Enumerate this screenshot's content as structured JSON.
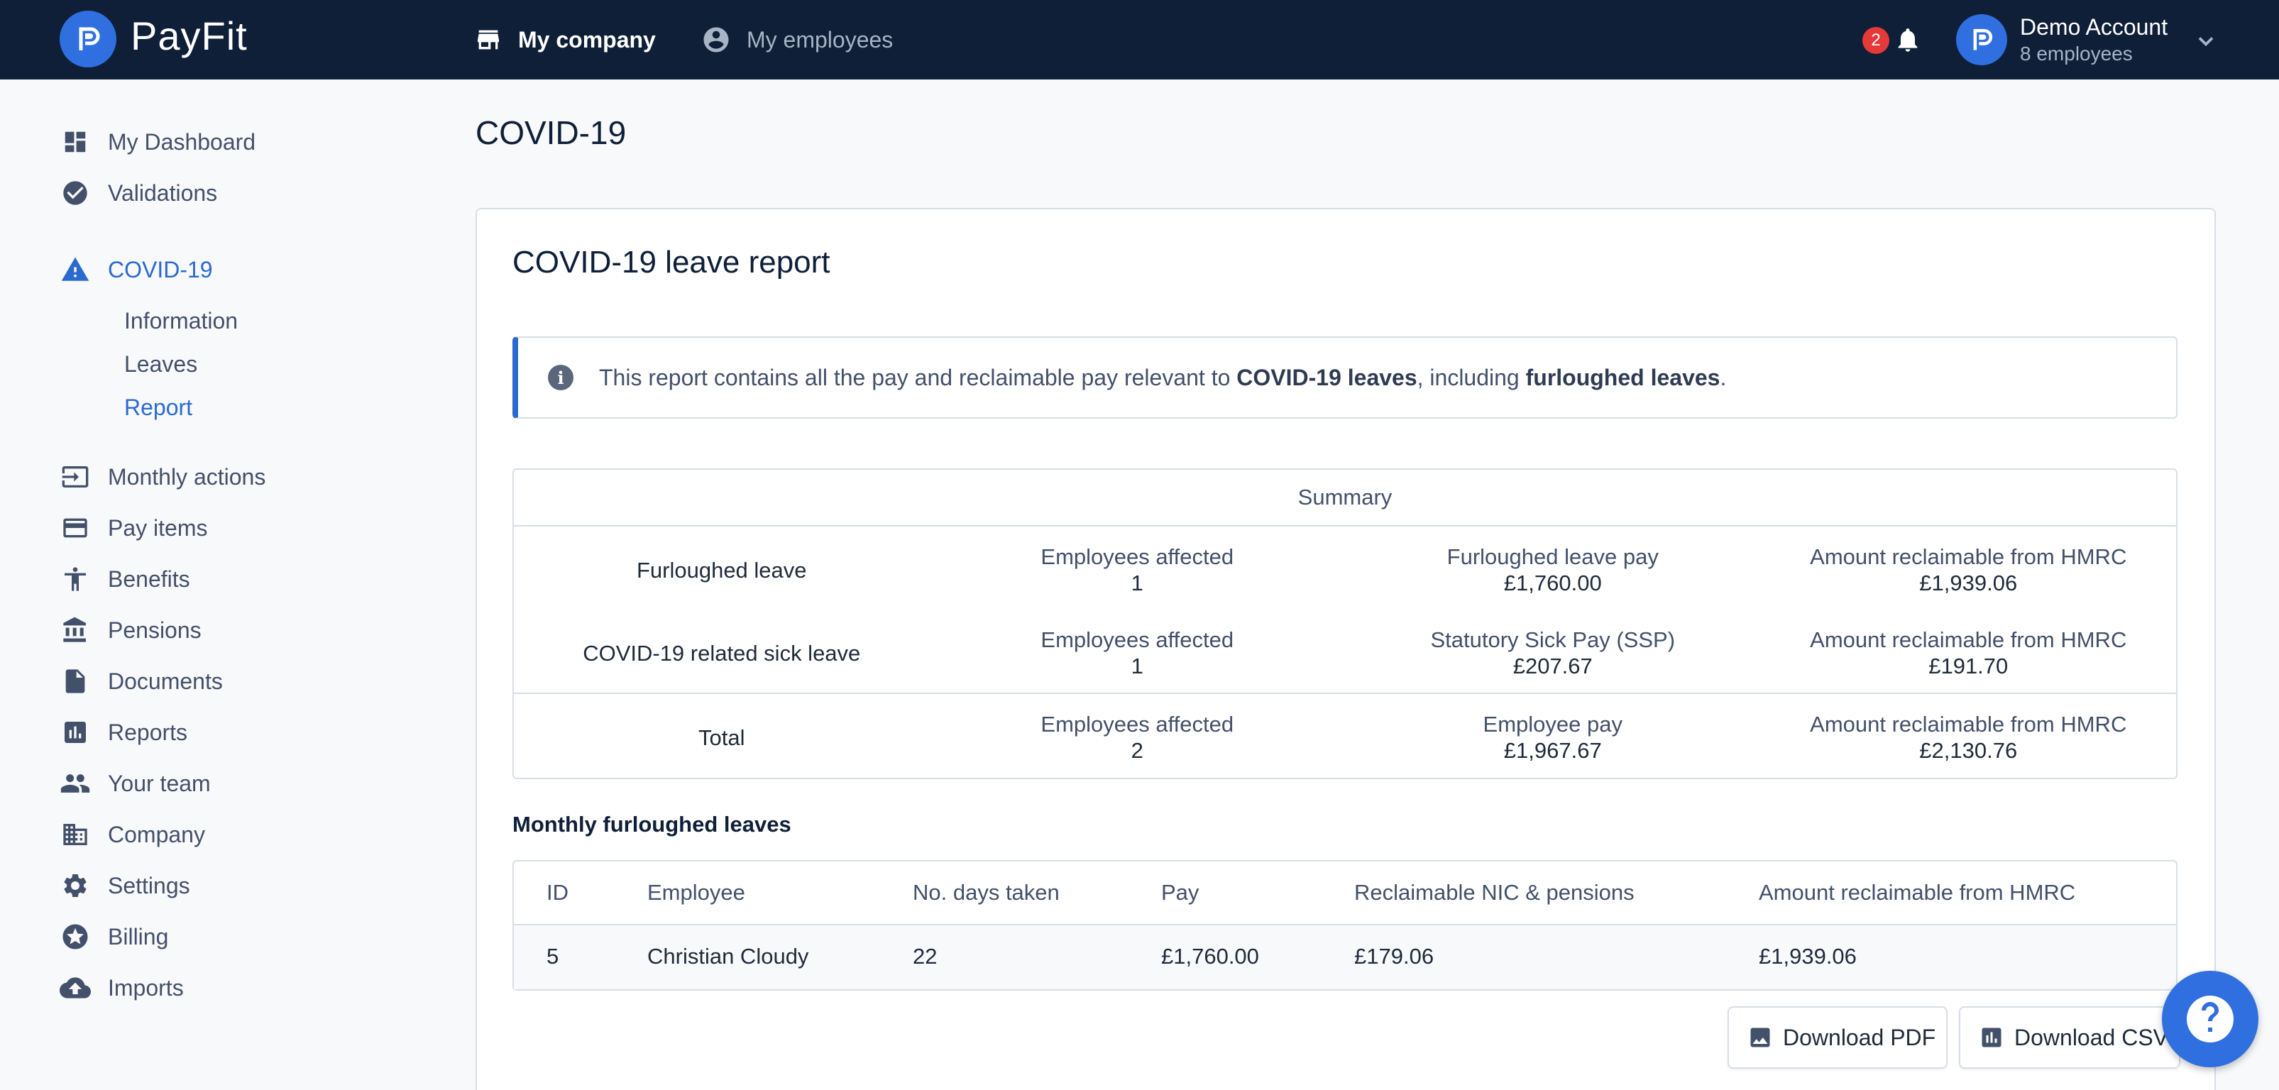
{
  "app": {
    "name": "PayFit"
  },
  "topnav": {
    "tabs": [
      {
        "label": "My company",
        "icon": "store-icon",
        "active": true
      },
      {
        "label": "My employees",
        "icon": "account-circle-icon",
        "active": false
      }
    ],
    "notifications": {
      "count": "2"
    },
    "account": {
      "name": "Demo Account",
      "subtitle": "8 employees"
    }
  },
  "sidebar": {
    "items": [
      {
        "label": "My Dashboard",
        "icon": "dashboard-icon"
      },
      {
        "label": "Validations",
        "icon": "check-circle-icon"
      },
      {
        "label": "COVID-19",
        "icon": "warning-icon"
      },
      {
        "label": "Monthly actions",
        "icon": "input-icon"
      },
      {
        "label": "Pay items",
        "icon": "credit-card-icon"
      },
      {
        "label": "Benefits",
        "icon": "accessibility-icon"
      },
      {
        "label": "Pensions",
        "icon": "bank-icon"
      },
      {
        "label": "Documents",
        "icon": "file-icon"
      },
      {
        "label": "Reports",
        "icon": "chart-icon"
      },
      {
        "label": "Your team",
        "icon": "people-icon"
      },
      {
        "label": "Company",
        "icon": "building-icon"
      },
      {
        "label": "Settings",
        "icon": "gear-icon"
      },
      {
        "label": "Billing",
        "icon": "star-badge-icon"
      },
      {
        "label": "Imports",
        "icon": "cloud-upload-icon"
      }
    ],
    "covid_sub": [
      {
        "label": "Information"
      },
      {
        "label": "Leaves"
      },
      {
        "label": "Report"
      }
    ]
  },
  "page": {
    "title": "COVID-19",
    "card_title": "COVID-19 leave report",
    "info": {
      "prefix": "This report contains all the pay and reclaimable pay relevant to ",
      "bold1": "COVID-19 leaves",
      "middle": ", including ",
      "bold2": "furloughed leaves",
      "suffix": "."
    }
  },
  "summary": {
    "heading": "Summary",
    "rows": [
      {
        "label": "Furloughed leave",
        "c1k": "Employees affected",
        "c1v": "1",
        "c2k": "Furloughed leave pay",
        "c2v": "£1,760.00",
        "c3k": "Amount reclaimable from HMRC",
        "c3v": "£1,939.06"
      },
      {
        "label": "COVID-19 related sick leave",
        "c1k": "Employees affected",
        "c1v": "1",
        "c2k": "Statutory Sick Pay (SSP)",
        "c2v": "£207.67",
        "c3k": "Amount reclaimable from HMRC",
        "c3v": "£191.70"
      },
      {
        "label": "Total",
        "c1k": "Employees affected",
        "c1v": "2",
        "c2k": "Employee pay",
        "c2v": "£1,967.67",
        "c3k": "Amount reclaimable from HMRC",
        "c3v": "£2,130.76"
      }
    ]
  },
  "monthly": {
    "title": "Monthly furloughed leaves",
    "columns": [
      "ID",
      "Employee",
      "No. days taken",
      "Pay",
      "Reclaimable NIC & pensions",
      "Amount reclaimable from HMRC"
    ],
    "rows": [
      [
        "5",
        "Christian Cloudy",
        "22",
        "£1,760.00",
        "£179.06",
        "£1,939.06"
      ]
    ]
  },
  "actions": {
    "download_pdf": "Download PDF",
    "download_csv": "Download CSV"
  },
  "colors": {
    "topbar": "#0f1f38",
    "accent": "#2a6ad0",
    "brand": "#2f6fe0",
    "badge": "#e5393a"
  }
}
